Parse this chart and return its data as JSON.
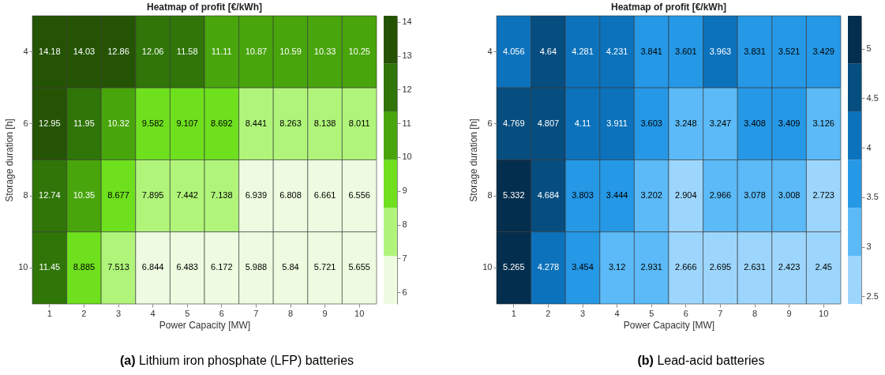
{
  "chart_data": [
    {
      "type": "heatmap",
      "title": "Heatmap of profit [€/kWh]",
      "xlabel": "Power Capacity [MW]",
      "ylabel": "Storage duration [h]",
      "categories": [
        "1",
        "2",
        "3",
        "4",
        "5",
        "6",
        "7",
        "8",
        "9",
        "10"
      ],
      "y_categories": [
        "4",
        "6",
        "8",
        "10"
      ],
      "cells": [
        [
          14.18,
          14.03,
          12.86,
          12.06,
          11.58,
          11.11,
          10.87,
          10.59,
          10.33,
          10.25
        ],
        [
          12.95,
          11.95,
          10.32,
          9.582,
          9.107,
          8.692,
          8.441,
          8.263,
          8.138,
          8.011
        ],
        [
          12.74,
          10.35,
          8.677,
          7.895,
          7.442,
          7.138,
          6.939,
          6.808,
          6.661,
          6.556
        ],
        [
          11.45,
          8.885,
          7.513,
          6.844,
          6.483,
          6.172,
          5.988,
          5.84,
          5.721,
          5.655
        ]
      ],
      "data_labels": true,
      "clim": [
        5.655,
        14.18
      ],
      "cticks": [
        6,
        7,
        8,
        9,
        10,
        11,
        12,
        13,
        14
      ],
      "colors": [
        "#edfce0",
        "#b0f57a",
        "#6ee01e",
        "#48a50c",
        "#2f7508",
        "#245403"
      ],
      "annotations": [
        "(a) Lithium iron phosphate (LFP) batteries"
      ]
    },
    {
      "type": "heatmap",
      "title": "Heatmap of profit [€/kWh]",
      "xlabel": "Power Capacity [MW]",
      "ylabel": "Storage duration [h]",
      "categories": [
        "1",
        "2",
        "3",
        "4",
        "5",
        "6",
        "7",
        "8",
        "9",
        "10"
      ],
      "y_categories": [
        "4",
        "6",
        "8",
        "10"
      ],
      "cells": [
        [
          4.056,
          4.64,
          4.281,
          4.231,
          3.841,
          3.601,
          3.963,
          3.831,
          3.521,
          3.429
        ],
        [
          4.769,
          4.807,
          4.11,
          3.911,
          3.603,
          3.248,
          3.247,
          3.408,
          3.409,
          3.126
        ],
        [
          5.332,
          4.684,
          3.803,
          3.444,
          3.202,
          2.904,
          2.966,
          3.078,
          3.008,
          2.723
        ],
        [
          5.265,
          4.278,
          3.454,
          3.12,
          2.931,
          2.666,
          2.695,
          2.631,
          2.423,
          2.45
        ]
      ],
      "data_labels": true,
      "clim": [
        2.423,
        5.332
      ],
      "cticks": [
        2.5,
        3,
        3.5,
        4,
        4.5,
        5
      ],
      "colors": [
        "#9dd6fd",
        "#5bbaf7",
        "#2598e6",
        "#0c72bc",
        "#064d80",
        "#042e4d"
      ],
      "annotations": [
        "(b) Lead-acid batteries"
      ]
    }
  ]
}
